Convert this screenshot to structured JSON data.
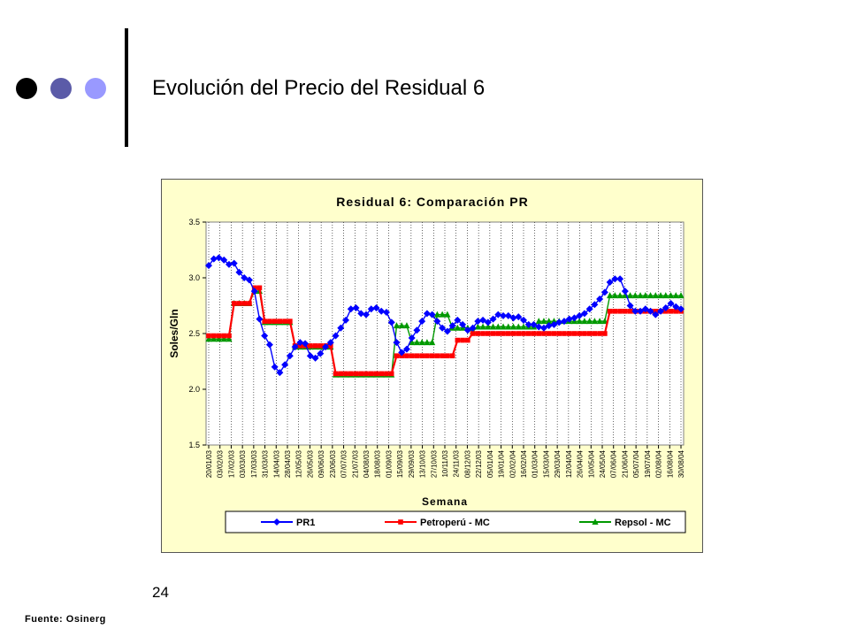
{
  "slide": {
    "title": "Evolución del Precio del Residual 6",
    "page_number": "24",
    "source": "Fuente: Osinerg"
  },
  "colors": {
    "dot1": "#000000",
    "dot2": "#5b5ba8",
    "dot3": "#9999ff",
    "chart_bg": "#ffffcc",
    "pr1": "#0000ff",
    "petroperu": "#ff0000",
    "repsol": "#009900"
  },
  "chart_data": {
    "type": "line",
    "title": "Residual 6: Comparación PR",
    "xlabel": "Semana",
    "ylabel": "Soles/Gln",
    "ylim": [
      1.5,
      3.5
    ],
    "yticks": [
      "1.5",
      "2.0",
      "2.5",
      "3.0",
      "3.5"
    ],
    "grid": "vertical",
    "legend_position": "bottom",
    "x_tick_labels": [
      "20/01/03",
      "03/02/03",
      "17/02/03",
      "03/03/03",
      "17/03/03",
      "31/03/03",
      "14/04/03",
      "28/04/03",
      "12/05/03",
      "26/05/03",
      "09/06/03",
      "23/06/03",
      "07/07/03",
      "21/07/03",
      "04/08/03",
      "18/08/03",
      "01/09/03",
      "15/09/03",
      "29/09/03",
      "13/10/03",
      "27/10/03",
      "10/11/03",
      "24/11/03",
      "08/12/03",
      "22/12/03",
      "05/01/04",
      "19/01/04",
      "02/02/04",
      "16/02/04",
      "01/03/04",
      "15/03/04",
      "29/03/04",
      "12/04/04",
      "26/04/04",
      "10/05/04",
      "24/05/04",
      "07/06/04",
      "21/06/04",
      "05/07/04",
      "19/07/04",
      "02/08/04",
      "16/08/04",
      "30/08/04"
    ],
    "series": [
      {
        "name": "PR1",
        "marker": "diamond",
        "values": [
          3.11,
          3.17,
          3.18,
          3.16,
          3.12,
          3.13,
          3.05,
          3.0,
          2.98,
          2.88,
          2.63,
          2.48,
          2.4,
          2.2,
          2.15,
          2.22,
          2.3,
          2.38,
          2.42,
          2.41,
          2.3,
          2.28,
          2.32,
          2.38,
          2.42,
          2.48,
          2.55,
          2.62,
          2.72,
          2.73,
          2.68,
          2.67,
          2.72,
          2.73,
          2.7,
          2.69,
          2.6,
          2.42,
          2.33,
          2.36,
          2.46,
          2.53,
          2.61,
          2.68,
          2.67,
          2.61,
          2.55,
          2.52,
          2.57,
          2.62,
          2.58,
          2.53,
          2.55,
          2.61,
          2.62,
          2.6,
          2.63,
          2.67,
          2.66,
          2.66,
          2.64,
          2.65,
          2.62,
          2.58,
          2.58,
          2.56,
          2.55,
          2.57,
          2.58,
          2.6,
          2.61,
          2.63,
          2.64,
          2.66,
          2.68,
          2.72,
          2.76,
          2.81,
          2.87,
          2.96,
          2.99,
          2.99,
          2.88,
          2.75,
          2.7,
          2.7,
          2.72,
          2.7,
          2.67,
          2.7,
          2.73,
          2.77,
          2.74,
          2.72
        ]
      },
      {
        "name": "Petroperú - MC",
        "marker": "square",
        "values": [
          2.48,
          2.48,
          2.48,
          2.48,
          2.48,
          2.77,
          2.77,
          2.77,
          2.77,
          2.91,
          2.91,
          2.61,
          2.61,
          2.61,
          2.61,
          2.61,
          2.61,
          2.39,
          2.39,
          2.39,
          2.39,
          2.39,
          2.39,
          2.39,
          2.39,
          2.14,
          2.14,
          2.14,
          2.14,
          2.14,
          2.14,
          2.14,
          2.14,
          2.14,
          2.14,
          2.14,
          2.14,
          2.3,
          2.3,
          2.3,
          2.3,
          2.3,
          2.3,
          2.3,
          2.3,
          2.3,
          2.3,
          2.3,
          2.3,
          2.44,
          2.44,
          2.44,
          2.5,
          2.5,
          2.5,
          2.5,
          2.5,
          2.5,
          2.5,
          2.5,
          2.5,
          2.5,
          2.5,
          2.5,
          2.5,
          2.5,
          2.5,
          2.5,
          2.5,
          2.5,
          2.5,
          2.5,
          2.5,
          2.5,
          2.5,
          2.5,
          2.5,
          2.5,
          2.5,
          2.7,
          2.7,
          2.7,
          2.7,
          2.7,
          2.7,
          2.7,
          2.7,
          2.7,
          2.7,
          2.7,
          2.7,
          2.7,
          2.7,
          2.7
        ]
      },
      {
        "name": "Repsol - MC",
        "marker": "triangle",
        "values": [
          2.45,
          2.45,
          2.45,
          2.45,
          2.45,
          2.77,
          2.77,
          2.77,
          2.77,
          2.88,
          2.88,
          2.6,
          2.6,
          2.6,
          2.6,
          2.6,
          2.6,
          2.38,
          2.38,
          2.38,
          2.38,
          2.38,
          2.38,
          2.38,
          2.38,
          2.13,
          2.13,
          2.13,
          2.13,
          2.13,
          2.13,
          2.13,
          2.13,
          2.13,
          2.13,
          2.13,
          2.13,
          2.57,
          2.57,
          2.57,
          2.42,
          2.42,
          2.42,
          2.42,
          2.42,
          2.67,
          2.67,
          2.67,
          2.55,
          2.55,
          2.55,
          2.55,
          2.52,
          2.56,
          2.56,
          2.56,
          2.56,
          2.56,
          2.56,
          2.56,
          2.56,
          2.56,
          2.56,
          2.56,
          2.56,
          2.61,
          2.61,
          2.61,
          2.61,
          2.61,
          2.61,
          2.61,
          2.61,
          2.61,
          2.61,
          2.61,
          2.61,
          2.61,
          2.61,
          2.84,
          2.84,
          2.84,
          2.84,
          2.84,
          2.84,
          2.84,
          2.84,
          2.84,
          2.84,
          2.84,
          2.84,
          2.84,
          2.84,
          2.84
        ]
      }
    ]
  }
}
